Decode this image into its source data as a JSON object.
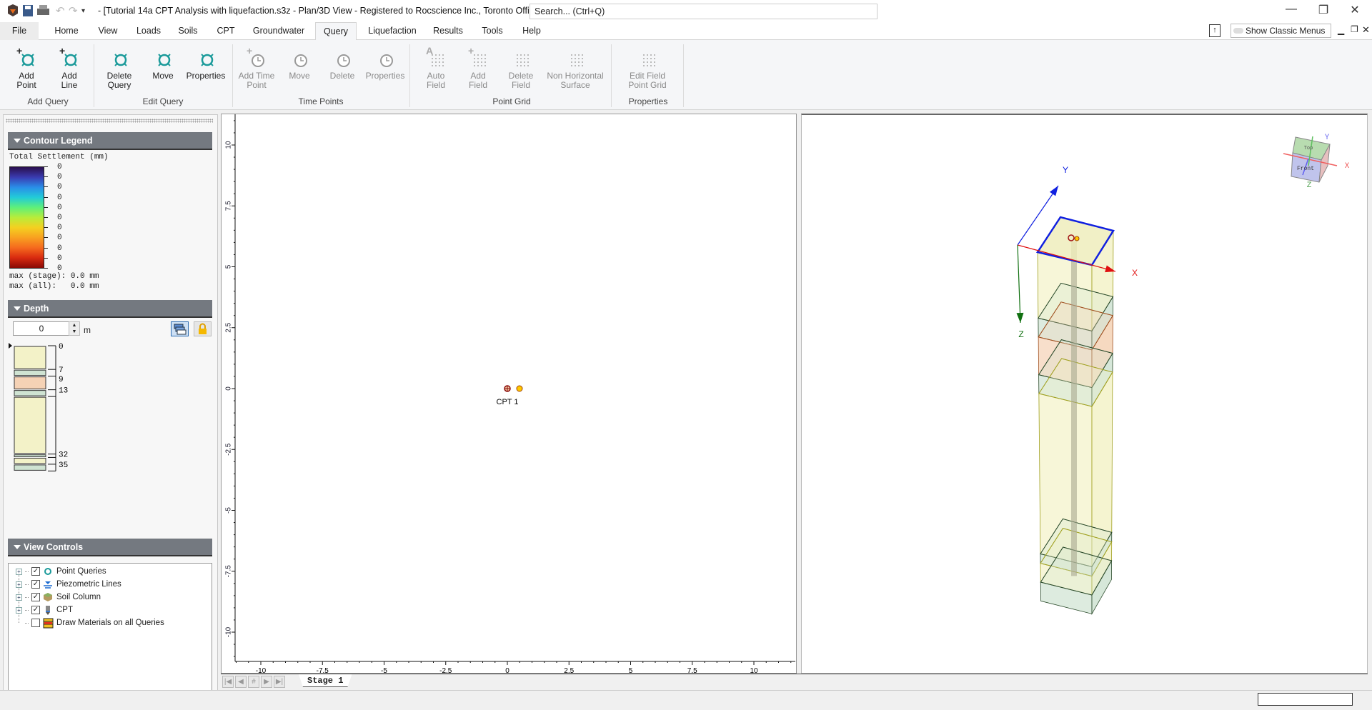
{
  "window": {
    "title": "- [Tutorial 14a CPT Analysis with liquefaction.s3z - Plan/3D View - Registered to Rocscience Inc., Toronto Office]",
    "search_placeholder": "Search... (Ctrl+Q)",
    "controls": [
      "minimize",
      "restore",
      "close"
    ]
  },
  "tabs": [
    {
      "label": "File"
    },
    {
      "label": "Home"
    },
    {
      "label": "View"
    },
    {
      "label": "Loads"
    },
    {
      "label": "Soils"
    },
    {
      "label": "CPT"
    },
    {
      "label": "Groundwater"
    },
    {
      "label": "Query",
      "selected": true
    },
    {
      "label": "Liquefaction"
    },
    {
      "label": "Results"
    },
    {
      "label": "Tools"
    },
    {
      "label": "Help"
    }
  ],
  "show_classic_menus": {
    "label": "Show Classic Menus",
    "on": false
  },
  "ribbon": {
    "groups": [
      {
        "label": "Add Query",
        "buttons": [
          {
            "line1": "Add",
            "line2": "Point",
            "icon": "add-point-icon",
            "enabled": true
          },
          {
            "line1": "Add",
            "line2": "Line",
            "icon": "add-line-icon",
            "enabled": true
          }
        ]
      },
      {
        "label": "Edit Query",
        "buttons": [
          {
            "line1": "Delete",
            "line2": "Query",
            "icon": "delete-query-icon",
            "enabled": true
          },
          {
            "line1": "Move",
            "line2": "",
            "icon": "move-icon",
            "enabled": true
          },
          {
            "line1": "Properties",
            "line2": "",
            "icon": "properties-icon",
            "enabled": true
          }
        ]
      },
      {
        "label": "Time Points",
        "buttons": [
          {
            "line1": "Add Time",
            "line2": "Point",
            "icon": "add-time-point-icon",
            "enabled": false
          },
          {
            "line1": "Move",
            "line2": "",
            "icon": "move-time-point-icon",
            "enabled": false
          },
          {
            "line1": "Delete",
            "line2": "",
            "icon": "delete-time-point-icon",
            "enabled": false
          },
          {
            "line1": "Properties",
            "line2": "",
            "icon": "time-point-properties-icon",
            "enabled": false
          }
        ]
      },
      {
        "label": "Point Grid",
        "buttons": [
          {
            "line1": "Auto",
            "line2": "Field",
            "icon": "auto-field-icon",
            "enabled": false
          },
          {
            "line1": "Add",
            "line2": "Field",
            "icon": "add-field-icon",
            "enabled": false
          },
          {
            "line1": "Delete",
            "line2": "Field",
            "icon": "delete-field-icon",
            "enabled": false
          },
          {
            "line1": "Non Horizontal",
            "line2": "Surface",
            "icon": "non-horizontal-surface-icon",
            "enabled": false
          }
        ]
      },
      {
        "label": "Properties",
        "buttons": [
          {
            "line1": "Edit Field",
            "line2": "Point Grid",
            "icon": "edit-field-point-grid-icon",
            "enabled": false
          }
        ]
      }
    ]
  },
  "contour_legend": {
    "header": "Contour Legend",
    "title": "Total Settlement (mm)",
    "labels": [
      "0",
      "0",
      "0",
      "0",
      "0",
      "0",
      "0",
      "0",
      "0",
      "0",
      "0"
    ],
    "max_stage": "max (stage): 0.0 mm",
    "max_all": "max (all):   0.0 mm",
    "colors": [
      "#2a0f4e",
      "#3a3bb0",
      "#2a8de8",
      "#22cbd8",
      "#5ef07a",
      "#b8ec3a",
      "#f4d020",
      "#f8a020",
      "#f56a1e",
      "#d82a10",
      "#8a0a05"
    ]
  },
  "depth": {
    "header": "Depth",
    "value": "0",
    "unit": "m",
    "labels": [
      "0",
      "7",
      "9",
      "13",
      "32",
      "35"
    ],
    "label_depths": [
      0,
      7,
      9,
      13,
      32,
      35
    ],
    "layers": [
      {
        "top": 0,
        "bottom": 7,
        "color": "#f3f2c8"
      },
      {
        "top": 7,
        "bottom": 9,
        "color": "#cfe3d2"
      },
      {
        "top": 9,
        "bottom": 13,
        "color": "#f5d2b5"
      },
      {
        "top": 13,
        "bottom": 15,
        "color": "#cfe3d2"
      },
      {
        "top": 15,
        "bottom": 32,
        "color": "#f3f2c8"
      },
      {
        "top": 32,
        "bottom": 33,
        "color": "#cfe3d2"
      },
      {
        "top": 33,
        "bottom": 35,
        "color": "#f3f2c8"
      },
      {
        "top": 35,
        "bottom": 37,
        "color": "#cfe3d2"
      }
    ]
  },
  "view_controls": {
    "header": "View Controls",
    "items": [
      {
        "label": "Point Queries",
        "checked": true,
        "icon": "point-query-icon"
      },
      {
        "label": "Piezometric Lines",
        "checked": true,
        "icon": "piezometric-line-icon"
      },
      {
        "label": "Soil Column",
        "checked": true,
        "icon": "soil-column-icon"
      },
      {
        "label": "CPT",
        "checked": true,
        "icon": "cpt-icon"
      },
      {
        "label": "Draw Materials on all Queries",
        "checked": false,
        "icon": "materials-icon"
      }
    ]
  },
  "plan_view": {
    "x_ticks": [
      "-10",
      "-7.5",
      "-5",
      "-2.5",
      "0",
      "2.5",
      "5",
      "7.5",
      "10"
    ],
    "y_ticks": [
      "10",
      "7.5",
      "5",
      "2.5",
      "0",
      "-2.5",
      "-5",
      "-7.5",
      "-10"
    ],
    "cpt": {
      "label": "CPT 1",
      "x": 0,
      "y": 0
    }
  },
  "view_3d": {
    "axes": {
      "x": "X",
      "y": "Y",
      "z": "Z"
    },
    "nav_cube": {
      "top": "Top",
      "front": "Front",
      "x": "X",
      "y": "Y",
      "z": "Z"
    }
  },
  "stages": {
    "tabs": [
      "Stage 1"
    ],
    "nav": [
      "first",
      "prev",
      "#",
      "next",
      "last"
    ]
  }
}
